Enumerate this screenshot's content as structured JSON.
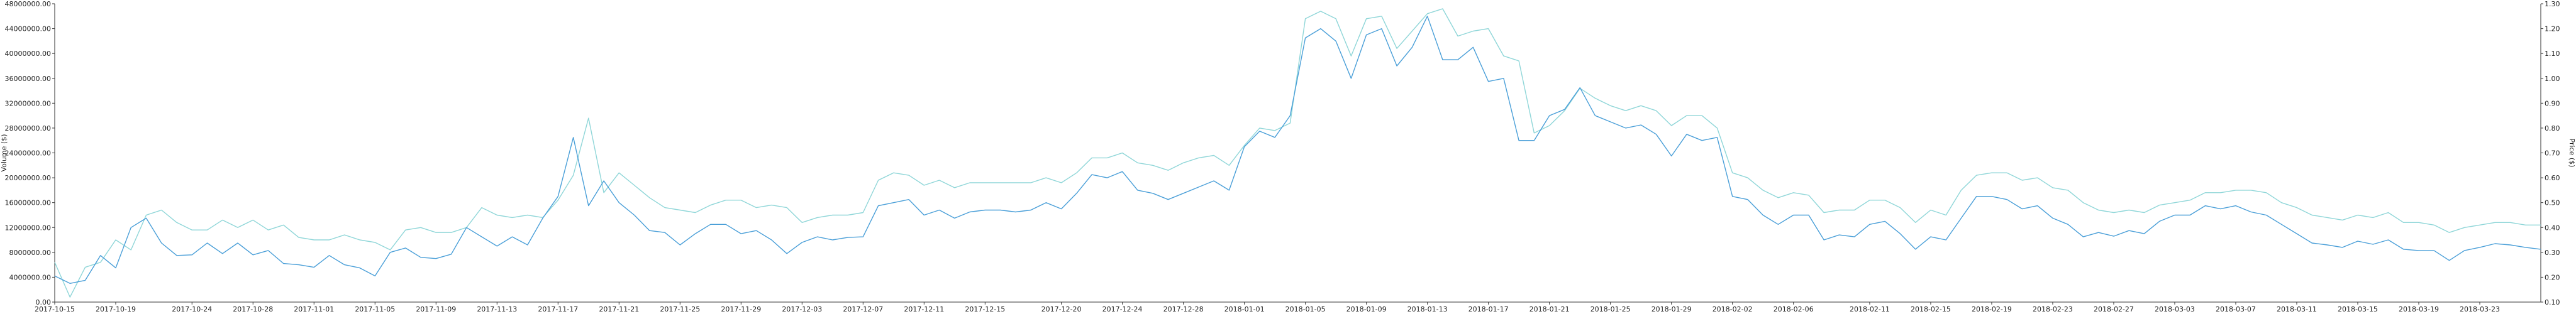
{
  "chart_data": {
    "type": "line",
    "title": "",
    "y_left_label": "Volume ($)",
    "y_right_label": "Price ($)",
    "y_left_ticks": [
      "0.00",
      "4000000.00",
      "8000000.00",
      "12000000.00",
      "16000000.00",
      "20000000.00",
      "24000000.00",
      "28000000.00",
      "32000000.00",
      "36000000.00",
      "40000000.00",
      "44000000.00",
      "48000000.00"
    ],
    "y_right_ticks": [
      "0.10",
      "0.20",
      "0.30",
      "0.40",
      "0.50",
      "0.60",
      "0.70",
      "0.80",
      "0.90",
      "1.00",
      "1.10",
      "1.20",
      "1.30"
    ],
    "y_left_range": [
      0,
      48000000
    ],
    "y_right_range": [
      0.1,
      1.3
    ],
    "x_start": "2017-10-15",
    "x_tick_labels": [
      "2017-10-15",
      "2017-10-19",
      "2017-10-24",
      "2017-10-28",
      "2017-11-01",
      "2017-11-05",
      "2017-11-09",
      "2017-11-13",
      "2017-11-17",
      "2017-11-21",
      "2017-11-25",
      "2017-11-29",
      "2017-12-03",
      "2017-12-07",
      "2017-12-11",
      "2017-12-15",
      "2017-12-20",
      "2017-12-24",
      "2017-12-28",
      "2018-01-01",
      "2018-01-05",
      "2018-01-09",
      "2018-01-13",
      "2018-01-17",
      "2018-01-21",
      "2018-01-25",
      "2018-01-29",
      "2018-02-02",
      "2018-02-06",
      "2018-02-11",
      "2018-02-15",
      "2018-02-19",
      "2018-02-23",
      "2018-02-27",
      "2018-03-03",
      "2018-03-07",
      "2018-03-11",
      "2018-03-15",
      "2018-03-19",
      "2018-03-23"
    ],
    "grid": false,
    "series": [
      {
        "name": "",
        "axis": "left",
        "color": "#4a9fd8",
        "values": [
          4200000,
          3000000,
          3500000,
          7500000,
          5500000,
          12000000,
          13500000,
          9500000,
          7500000,
          7600000,
          9500000,
          7800000,
          9500000,
          7600000,
          8300000,
          6200000,
          6000000,
          5600000,
          7500000,
          6000000,
          5500000,
          4200000,
          8000000,
          8700000,
          7200000,
          7000000,
          7700000,
          12000000,
          10500000,
          9000000,
          10500000,
          9200000,
          13500000,
          17000000,
          26500000,
          15500000,
          19500000,
          16000000,
          14000000,
          11500000,
          11200000,
          9200000,
          11000000,
          12500000,
          12500000,
          11000000,
          11500000,
          10000000,
          7800000,
          9600000,
          10500000,
          10000000,
          10400000,
          10500000,
          15500000,
          16000000,
          16500000,
          14000000,
          14800000,
          13500000,
          14500000,
          14800000,
          14800000,
          14500000,
          14800000,
          16000000,
          15000000,
          17500000,
          20500000,
          20000000,
          21000000,
          18000000,
          17500000,
          16500000,
          17500000,
          18500000,
          19500000,
          18000000,
          25000000,
          27500000,
          26500000,
          30000000,
          42500000,
          44000000,
          42000000,
          36000000,
          43000000,
          44000000,
          38000000,
          41000000,
          46000000,
          39000000,
          39000000,
          41000000,
          35500000,
          36000000,
          26000000,
          26000000,
          30000000,
          31000000,
          34500000,
          30000000,
          29000000,
          28000000,
          28500000,
          27000000,
          23500000,
          27000000,
          26000000,
          26500000,
          17000000,
          16500000,
          14000000,
          12500000,
          14000000,
          14000000,
          10000000,
          10800000,
          10500000,
          12500000,
          13000000,
          11000000,
          8500000,
          10500000,
          10000000,
          13500000,
          17000000,
          17000000,
          16500000,
          15000000,
          15500000,
          13500000,
          12500000,
          10500000,
          11200000,
          10600000,
          11500000,
          11000000,
          13000000,
          14000000,
          14000000,
          15500000,
          15000000,
          15500000,
          14500000,
          14000000,
          12500000,
          11000000,
          9500000,
          9200000,
          8800000,
          9800000,
          9300000,
          10000000,
          8500000,
          8300000,
          8300000,
          6700000,
          8300000,
          8800000,
          9400000,
          9200000,
          8800000,
          8500000
        ]
      },
      {
        "name": "",
        "axis": "right",
        "color": "#8fd6d8",
        "values": [
          0.26,
          0.12,
          0.24,
          0.26,
          0.35,
          0.31,
          0.45,
          0.47,
          0.42,
          0.39,
          0.39,
          0.43,
          0.4,
          0.43,
          0.39,
          0.41,
          0.36,
          0.35,
          0.35,
          0.37,
          0.35,
          0.34,
          0.31,
          0.39,
          0.4,
          0.38,
          0.38,
          0.4,
          0.48,
          0.45,
          0.44,
          0.45,
          0.44,
          0.51,
          0.61,
          0.84,
          0.54,
          0.62,
          0.57,
          0.52,
          0.48,
          0.47,
          0.46,
          0.49,
          0.51,
          0.51,
          0.48,
          0.49,
          0.48,
          0.42,
          0.44,
          0.45,
          0.45,
          0.46,
          0.59,
          0.62,
          0.61,
          0.57,
          0.59,
          0.56,
          0.58,
          0.58,
          0.58,
          0.58,
          0.58,
          0.6,
          0.58,
          0.62,
          0.68,
          0.68,
          0.7,
          0.66,
          0.65,
          0.63,
          0.66,
          0.68,
          0.69,
          0.65,
          0.73,
          0.8,
          0.79,
          0.82,
          1.24,
          1.27,
          1.24,
          1.09,
          1.24,
          1.25,
          1.12,
          1.19,
          1.26,
          1.28,
          1.17,
          1.19,
          1.2,
          1.09,
          1.07,
          0.78,
          0.81,
          0.87,
          0.96,
          0.92,
          0.89,
          0.87,
          0.89,
          0.87,
          0.81,
          0.85,
          0.85,
          0.8,
          0.62,
          0.6,
          0.55,
          0.52,
          0.54,
          0.53,
          0.46,
          0.47,
          0.47,
          0.51,
          0.51,
          0.48,
          0.42,
          0.47,
          0.45,
          0.55,
          0.61,
          0.62,
          0.62,
          0.59,
          0.6,
          0.56,
          0.55,
          0.5,
          0.47,
          0.46,
          0.47,
          0.46,
          0.49,
          0.5,
          0.51,
          0.54,
          0.54,
          0.55,
          0.55,
          0.54,
          0.5,
          0.48,
          0.45,
          0.44,
          0.43,
          0.45,
          0.44,
          0.46,
          0.42,
          0.42,
          0.41,
          0.38,
          0.4,
          0.41,
          0.42,
          0.42,
          0.41,
          0.41
        ]
      }
    ]
  }
}
